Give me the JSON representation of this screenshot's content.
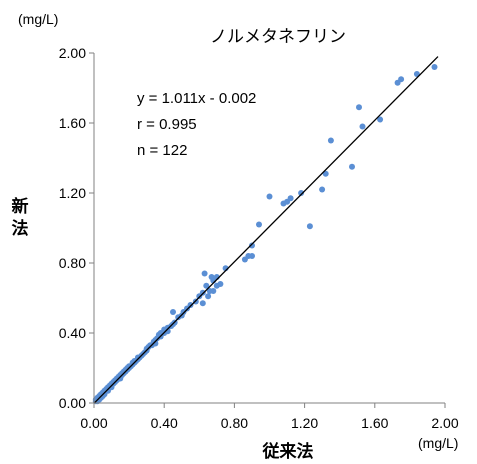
{
  "chart_data": {
    "type": "scatter",
    "title": "ノルメタネフリン",
    "xlabel": "従来法",
    "ylabel": "新法",
    "x_unit": "(mg/L)",
    "y_unit": "(mg/L)",
    "xlim": [
      0,
      2
    ],
    "ylim": [
      0,
      2
    ],
    "x_ticks": [
      "0.00",
      "0.40",
      "0.80",
      "1.20",
      "1.60",
      "2.00"
    ],
    "y_ticks": [
      "0.00",
      "0.40",
      "0.80",
      "1.20",
      "1.60",
      "2.00"
    ],
    "annotations": [
      "y = 1.011x - 0.002",
      "r = 0.995",
      "n = 122"
    ],
    "regression": {
      "slope": 1.011,
      "intercept": -0.002
    },
    "grid": false,
    "colors": {
      "points": "#5b8fd4",
      "line": "#000000"
    },
    "points": [
      [
        0.01,
        0.01
      ],
      [
        0.01,
        0.02
      ],
      [
        0.02,
        0.01
      ],
      [
        0.02,
        0.02
      ],
      [
        0.02,
        0.03
      ],
      [
        0.03,
        0.02
      ],
      [
        0.03,
        0.03
      ],
      [
        0.03,
        0.04
      ],
      [
        0.04,
        0.03
      ],
      [
        0.04,
        0.04
      ],
      [
        0.04,
        0.05
      ],
      [
        0.05,
        0.04
      ],
      [
        0.05,
        0.05
      ],
      [
        0.05,
        0.06
      ],
      [
        0.06,
        0.05
      ],
      [
        0.06,
        0.06
      ],
      [
        0.06,
        0.07
      ],
      [
        0.07,
        0.07
      ],
      [
        0.07,
        0.08
      ],
      [
        0.08,
        0.07
      ],
      [
        0.08,
        0.08
      ],
      [
        0.08,
        0.09
      ],
      [
        0.09,
        0.09
      ],
      [
        0.09,
        0.1
      ],
      [
        0.1,
        0.09
      ],
      [
        0.1,
        0.1
      ],
      [
        0.1,
        0.11
      ],
      [
        0.11,
        0.11
      ],
      [
        0.11,
        0.12
      ],
      [
        0.12,
        0.12
      ],
      [
        0.12,
        0.13
      ],
      [
        0.13,
        0.13
      ],
      [
        0.13,
        0.14
      ],
      [
        0.14,
        0.14
      ],
      [
        0.14,
        0.15
      ],
      [
        0.15,
        0.15
      ],
      [
        0.15,
        0.16
      ],
      [
        0.16,
        0.16
      ],
      [
        0.16,
        0.17
      ],
      [
        0.17,
        0.17
      ],
      [
        0.17,
        0.18
      ],
      [
        0.18,
        0.18
      ],
      [
        0.18,
        0.19
      ],
      [
        0.19,
        0.19
      ],
      [
        0.19,
        0.2
      ],
      [
        0.2,
        0.2
      ],
      [
        0.2,
        0.21
      ],
      [
        0.21,
        0.21
      ],
      [
        0.22,
        0.22
      ],
      [
        0.23,
        0.23
      ],
      [
        0.23,
        0.24
      ],
      [
        0.24,
        0.24
      ],
      [
        0.25,
        0.25
      ],
      [
        0.25,
        0.26
      ],
      [
        0.26,
        0.26
      ],
      [
        0.27,
        0.27
      ],
      [
        0.28,
        0.28
      ],
      [
        0.29,
        0.29
      ],
      [
        0.3,
        0.3
      ],
      [
        0.3,
        0.31
      ],
      [
        0.31,
        0.32
      ],
      [
        0.32,
        0.33
      ],
      [
        0.33,
        0.33
      ],
      [
        0.34,
        0.35
      ],
      [
        0.35,
        0.36
      ],
      [
        0.36,
        0.37
      ],
      [
        0.37,
        0.39
      ],
      [
        0.38,
        0.38
      ],
      [
        0.38,
        0.4
      ],
      [
        0.4,
        0.4
      ],
      [
        0.4,
        0.42
      ],
      [
        0.42,
        0.41
      ],
      [
        0.42,
        0.43
      ],
      [
        0.44,
        0.44
      ],
      [
        0.45,
        0.52
      ],
      [
        0.46,
        0.46
      ],
      [
        0.48,
        0.49
      ],
      [
        0.5,
        0.5
      ],
      [
        0.51,
        0.52
      ],
      [
        0.53,
        0.54
      ],
      [
        0.55,
        0.56
      ],
      [
        0.58,
        0.58
      ],
      [
        0.6,
        0.61
      ],
      [
        0.62,
        0.63
      ],
      [
        0.62,
        0.57
      ],
      [
        0.63,
        0.74
      ],
      [
        0.64,
        0.67
      ],
      [
        0.65,
        0.61
      ],
      [
        0.66,
        0.64
      ],
      [
        0.67,
        0.72
      ],
      [
        0.68,
        0.7
      ],
      [
        0.68,
        0.64
      ],
      [
        0.7,
        0.72
      ],
      [
        0.7,
        0.67
      ],
      [
        0.72,
        0.68
      ],
      [
        0.75,
        0.77
      ],
      [
        0.86,
        0.82
      ],
      [
        0.88,
        0.84
      ],
      [
        0.9,
        0.84
      ],
      [
        0.9,
        0.9
      ],
      [
        0.94,
        1.02
      ],
      [
        1.0,
        1.18
      ],
      [
        1.08,
        1.14
      ],
      [
        1.1,
        1.15
      ],
      [
        1.12,
        1.17
      ],
      [
        1.18,
        1.2
      ],
      [
        1.23,
        1.01
      ],
      [
        1.3,
        1.22
      ],
      [
        1.32,
        1.31
      ],
      [
        1.35,
        1.5
      ],
      [
        1.47,
        1.35
      ],
      [
        1.51,
        1.69
      ],
      [
        1.53,
        1.58
      ],
      [
        1.63,
        1.62
      ],
      [
        1.73,
        1.83
      ],
      [
        1.75,
        1.85
      ],
      [
        1.84,
        1.88
      ],
      [
        1.94,
        1.92
      ],
      [
        0.15,
        0.14
      ],
      [
        0.35,
        0.34
      ],
      [
        0.22,
        0.23
      ],
      [
        0.45,
        0.45
      ]
    ]
  }
}
